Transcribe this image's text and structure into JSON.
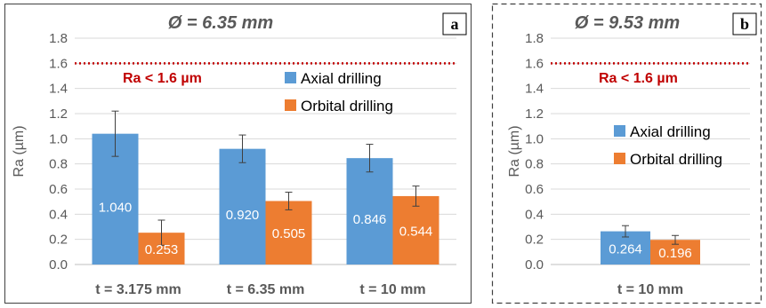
{
  "colors": {
    "axial": "#5b9bd5",
    "orbital": "#ed7d31",
    "threshold": "#c00000",
    "title": "#595959",
    "axis_text": "#595959",
    "grid": "#d9d9d9",
    "error_bar": "#404040",
    "frame": "#404040",
    "label_text": "#ffffff"
  },
  "chart_data": [
    {
      "type": "bar",
      "panel_label": "a",
      "title": "Ø = 6.35 mm",
      "xlabel": "",
      "ylabel": "Ra (µm)",
      "ylim": [
        0,
        1.8
      ],
      "yticks": [
        "0.0",
        "0.2",
        "0.4",
        "0.6",
        "0.8",
        "1.0",
        "1.2",
        "1.4",
        "1.6",
        "1.8"
      ],
      "grid": true,
      "legend_position": "top-right",
      "categories": [
        "t = 3.175 mm",
        "t = 6.35 mm",
        "t = 10 mm"
      ],
      "series": [
        {
          "name": "Axial drilling",
          "values": [
            1.04,
            0.92,
            0.846
          ],
          "errors": [
            0.18,
            0.11,
            0.11
          ],
          "labels": [
            "1.040",
            "0.920",
            "0.846"
          ]
        },
        {
          "name": "Orbital drilling",
          "values": [
            0.253,
            0.505,
            0.544
          ],
          "errors": [
            0.1,
            0.07,
            0.08
          ],
          "labels": [
            "0.253",
            "0.505",
            "0.544"
          ]
        }
      ],
      "threshold": {
        "value": 1.6,
        "label": "Ra < 1.6 µm"
      }
    },
    {
      "type": "bar",
      "panel_label": "b",
      "title": "Ø = 9.53 mm",
      "xlabel": "",
      "ylabel": "Ra (µm)",
      "ylim": [
        0,
        1.8
      ],
      "yticks": [
        "0.0",
        "0.2",
        "0.4",
        "0.6",
        "0.8",
        "1.0",
        "1.2",
        "1.4",
        "1.6",
        "1.8"
      ],
      "grid": true,
      "legend_position": "right",
      "categories": [
        "t = 10 mm"
      ],
      "series": [
        {
          "name": "Axial drilling",
          "values": [
            0.264
          ],
          "errors": [
            0.045
          ],
          "labels": [
            "0.264"
          ]
        },
        {
          "name": "Orbital drilling",
          "values": [
            0.196
          ],
          "errors": [
            0.035
          ],
          "labels": [
            "0.196"
          ]
        }
      ],
      "threshold": {
        "value": 1.6,
        "label": "Ra < 1.6 µm"
      }
    }
  ]
}
